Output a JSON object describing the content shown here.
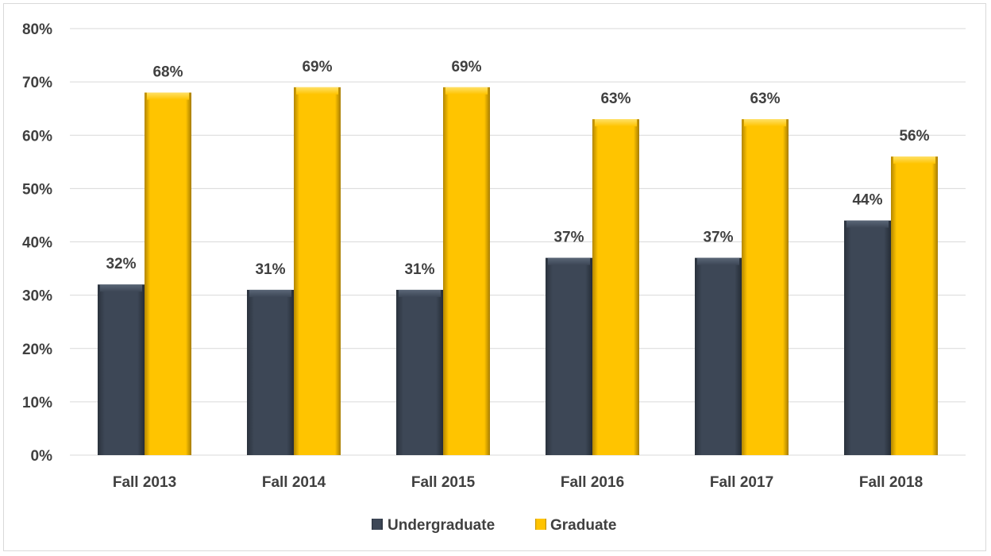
{
  "chart_data": {
    "type": "bar",
    "categories": [
      "Fall 2013",
      "Fall 2014",
      "Fall 2015",
      "Fall 2016",
      "Fall 2017",
      "Fall 2018"
    ],
    "series": [
      {
        "name": "Undergraduate",
        "values": [
          32,
          31,
          31,
          37,
          37,
          44
        ],
        "labels": [
          "32%",
          "31%",
          "31%",
          "37%",
          "37%",
          "44%"
        ],
        "color": "#3a4452"
      },
      {
        "name": "Graduate",
        "values": [
          68,
          69,
          69,
          63,
          63,
          56
        ],
        "labels": [
          "68%",
          "69%",
          "69%",
          "63%",
          "63%",
          "56%"
        ],
        "color": "#ffc000"
      }
    ],
    "ylim": [
      0,
      80
    ],
    "yticks": [
      0,
      10,
      20,
      30,
      40,
      50,
      60,
      70,
      80
    ],
    "ytick_labels": [
      "0%",
      "10%",
      "20%",
      "30%",
      "40%",
      "50%",
      "60%",
      "70%",
      "80%"
    ],
    "grid": true,
    "legend_position": "bottom"
  }
}
